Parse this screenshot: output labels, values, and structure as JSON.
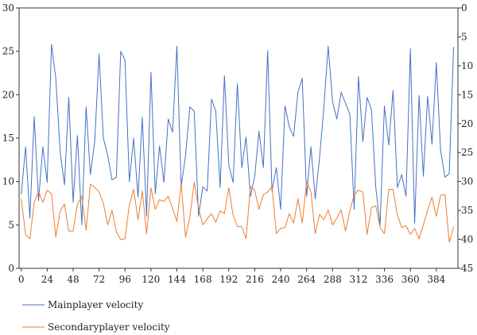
{
  "chart_data": {
    "type": "line",
    "title": "",
    "xlabel": "",
    "ylabel": "",
    "xlim": [
      -2,
      404
    ],
    "ylim": [
      0,
      30
    ],
    "y2lim": [
      0,
      45
    ],
    "y2_reversed": true,
    "x_ticks": [
      0,
      24,
      48,
      72,
      96,
      120,
      144,
      168,
      192,
      216,
      240,
      264,
      288,
      312,
      336,
      360,
      384
    ],
    "y_ticks": [
      0,
      5,
      10,
      15,
      20,
      25,
      30
    ],
    "y2_ticks": [
      0,
      5,
      10,
      15,
      20,
      25,
      30,
      35,
      40,
      45
    ],
    "legend_position": "bottom-left",
    "grid": false,
    "series": [
      {
        "name": "Mainplayer velocity",
        "color": "#4472C4",
        "x": [
          0,
          4,
          8,
          12,
          16,
          20,
          24,
          28,
          32,
          36,
          40,
          44,
          48,
          52,
          56,
          60,
          64,
          68,
          72,
          76,
          80,
          84,
          88,
          92,
          96,
          100,
          104,
          108,
          112,
          116,
          120,
          124,
          128,
          132,
          136,
          140,
          144,
          148,
          152,
          156,
          160,
          164,
          168,
          172,
          176,
          180,
          184,
          188,
          192,
          196,
          200,
          204,
          208,
          212,
          216,
          220,
          224,
          228,
          232,
          236,
          240,
          244,
          248,
          252,
          256,
          260,
          264,
          268,
          272,
          276,
          280,
          284,
          288,
          292,
          296,
          300,
          304,
          308,
          312,
          316,
          320,
          324,
          328,
          332,
          336,
          340,
          344,
          348,
          352,
          356,
          360,
          364,
          368,
          372,
          376,
          380,
          384,
          388,
          392,
          396,
          400
        ],
        "y": [
          8.5,
          14,
          5.8,
          17.5,
          7.8,
          14,
          9.9,
          25.8,
          21.9,
          13.4,
          9.6,
          19.7,
          7.6,
          15.3,
          5.0,
          18.6,
          10.8,
          14.7,
          24.7,
          15.0,
          13.0,
          10.2,
          10.5,
          25.0,
          24.0,
          10.0,
          15.0,
          8.2,
          17.4,
          6.0,
          22.6,
          8.6,
          14.1,
          9.9,
          17.2,
          15.7,
          25.6,
          9.4,
          13.0,
          18.6,
          18.1,
          6.0,
          9.4,
          8.9,
          19.5,
          18.1,
          9.3,
          22.2,
          11.9,
          9.9,
          21.3,
          11.6,
          15.1,
          8.3,
          10.6,
          15.8,
          11.6,
          25.1,
          8.9,
          11.6,
          6.8,
          18.7,
          16.3,
          15.2,
          20.3,
          21.9,
          8.3,
          14.0,
          8.0,
          12.8,
          18.6,
          25.6,
          19.2,
          17.2,
          20.3,
          19.0,
          17.8,
          6.8,
          22.1,
          14.6,
          19.7,
          18.3,
          9.3,
          5.0,
          18.7,
          14.2,
          20.5,
          9.3,
          10.8,
          8.3,
          25.3,
          5.2,
          19.9,
          10.6,
          19.8,
          14.3,
          23.7,
          13.6,
          10.5,
          10.9,
          25.5
        ]
      },
      {
        "name": "Secondaryplayer velocity",
        "color": "#ED7D31",
        "x": [
          0,
          4,
          8,
          12,
          16,
          20,
          24,
          28,
          32,
          36,
          40,
          44,
          48,
          52,
          56,
          60,
          64,
          68,
          72,
          76,
          80,
          84,
          88,
          92,
          96,
          100,
          104,
          108,
          112,
          116,
          120,
          124,
          128,
          132,
          136,
          140,
          144,
          148,
          152,
          156,
          160,
          164,
          168,
          172,
          176,
          180,
          184,
          188,
          192,
          196,
          200,
          204,
          208,
          212,
          216,
          220,
          224,
          228,
          232,
          236,
          240,
          244,
          248,
          252,
          256,
          260,
          264,
          268,
          272,
          276,
          280,
          284,
          288,
          292,
          296,
          300,
          304,
          308,
          312,
          316,
          320,
          324,
          328,
          332,
          336,
          340,
          344,
          348,
          352,
          356,
          360,
          364,
          368,
          372,
          376,
          380,
          384,
          388,
          392,
          396,
          400
        ],
        "y": [
          8.0,
          3.9,
          3.4,
          7.6,
          8.8,
          7.6,
          9.0,
          8.6,
          3.6,
          6.6,
          7.4,
          4.3,
          4.3,
          7.4,
          8.3,
          4.4,
          9.7,
          9.3,
          8.8,
          7.5,
          5.0,
          6.7,
          4.2,
          3.3,
          3.4,
          7.3,
          9.1,
          5.6,
          8.9,
          4.0,
          9.3,
          6.8,
          7.9,
          7.7,
          8.3,
          6.9,
          5.4,
          9.8,
          3.6,
          5.9,
          9.9,
          7.0,
          5.0,
          5.7,
          6.3,
          5.3,
          6.6,
          6.3,
          9.3,
          6.1,
          4.8,
          4.8,
          3.4,
          9.4,
          9.0,
          6.8,
          8.5,
          8.8,
          9.4,
          4.0,
          4.6,
          4.7,
          6.3,
          5.2,
          8.0,
          5.2,
          10.0,
          8.8,
          4.0,
          6.2,
          5.6,
          6.7,
          5.0,
          5.8,
          6.7,
          4.3,
          6.6,
          8.5,
          9.0,
          8.8,
          3.9,
          7.0,
          7.2,
          4.7,
          4.0,
          9.1,
          9.1,
          6.1,
          4.7,
          4.9,
          3.9,
          4.6,
          3.4,
          5.0,
          6.7,
          8.2,
          6.0,
          8.4,
          8.5,
          3.0,
          4.8
        ]
      }
    ]
  }
}
